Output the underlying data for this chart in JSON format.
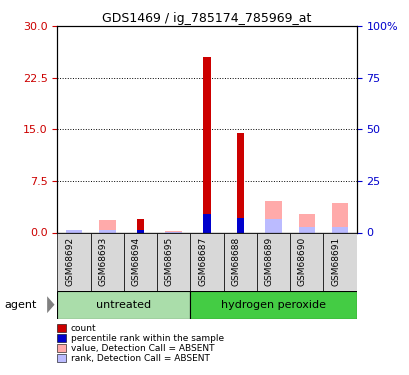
{
  "title": "GDS1469 / ig_785174_785969_at",
  "samples": [
    "GSM68692",
    "GSM68693",
    "GSM68694",
    "GSM68695",
    "GSM68687",
    "GSM68688",
    "GSM68689",
    "GSM68690",
    "GSM68691"
  ],
  "count": [
    0,
    0,
    2.0,
    0,
    25.5,
    14.5,
    0,
    0,
    0
  ],
  "percentile_rank": [
    0,
    0,
    1.3,
    0,
    9.0,
    7.0,
    0,
    0,
    0
  ],
  "value_absent": [
    1.2,
    6.0,
    0,
    0.5,
    0,
    0,
    15.5,
    9.0,
    14.5
  ],
  "rank_absent": [
    1.0,
    1.3,
    0,
    0.2,
    0,
    0,
    6.5,
    2.8,
    2.5
  ],
  "color_count": "#cc0000",
  "color_rank": "#0000cc",
  "color_value_absent": "#ffaaaa",
  "color_rank_absent": "#bbbbff",
  "left_ylim": [
    0,
    30
  ],
  "left_yticks": [
    0,
    7.5,
    15,
    22.5,
    30
  ],
  "right_ylim": [
    0,
    100
  ],
  "right_yticks": [
    0,
    25,
    50,
    75,
    100
  ],
  "right_yticklabels": [
    "0",
    "25",
    "50",
    "75",
    "100%"
  ],
  "group_untreated_color": "#aaddaa",
  "group_h2o2_color": "#44cc44",
  "bar_width": 0.5,
  "bg_color": "#ffffff",
  "ylabel_left_color": "#cc0000",
  "ylabel_right_color": "#0000cc",
  "untreated_count": 4,
  "h2o2_count": 5
}
